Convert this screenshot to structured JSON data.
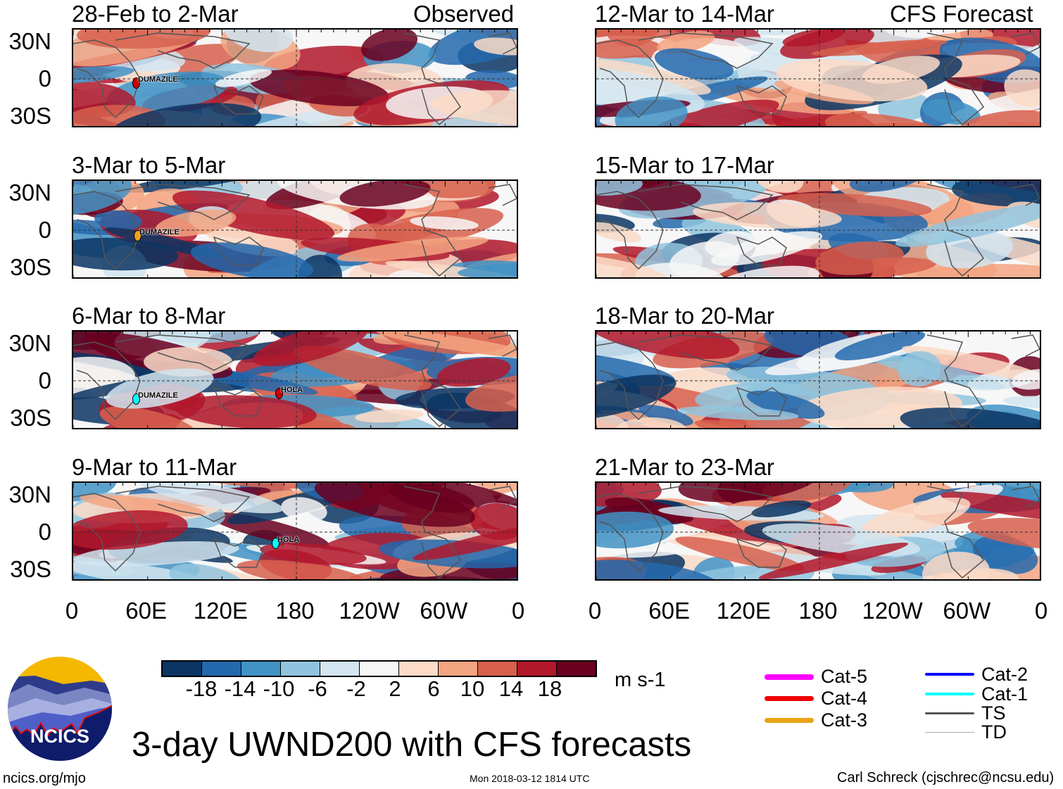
{
  "headers": {
    "observed": "Observed",
    "forecast": "CFS Forecast"
  },
  "panels": {
    "observed": [
      {
        "title": "28-Feb to 2-Mar",
        "storms": [
          "DUMAZILE"
        ]
      },
      {
        "title": "3-Mar to 5-Mar",
        "storms": [
          "DUMAZILE"
        ]
      },
      {
        "title": "6-Mar to 8-Mar",
        "storms": [
          "DUMAZILE",
          "HOLA"
        ]
      },
      {
        "title": "9-Mar to 11-Mar",
        "storms": [
          "HOLA"
        ]
      }
    ],
    "forecast": [
      {
        "title": "12-Mar to 14-Mar",
        "storms": []
      },
      {
        "title": "15-Mar to 17-Mar",
        "storms": []
      },
      {
        "title": "18-Mar to 20-Mar",
        "storms": []
      },
      {
        "title": "21-Mar to 23-Mar",
        "storms": []
      }
    ]
  },
  "lat_labels": [
    "30N",
    "0",
    "30S"
  ],
  "lon_labels": [
    "0",
    "60E",
    "120E",
    "180",
    "120W",
    "60W",
    "0"
  ],
  "colorbar": {
    "colors": [
      "#0b3563",
      "#2369ad",
      "#4293c5",
      "#90c4de",
      "#d2e5f0",
      "#f7f7f7",
      "#fcdbc7",
      "#f3a481",
      "#d7604d",
      "#b2182b",
      "#6a0020"
    ],
    "labels": [
      "-18",
      "-14",
      "-10",
      "-6",
      "-2",
      "2",
      "6",
      "10",
      "14",
      "18"
    ],
    "units": "m s-1"
  },
  "legend": [
    {
      "label": "Cat-5",
      "color": "#ff00ff"
    },
    {
      "label": "Cat-4",
      "color": "#ee0000"
    },
    {
      "label": "Cat-3",
      "color": "#e8a317"
    },
    {
      "label": "Cat-2",
      "color": "#0000ff"
    },
    {
      "label": "Cat-1",
      "color": "#00ffff"
    },
    {
      "label": "TS",
      "color": "#555555"
    },
    {
      "label": "TD",
      "color": "#aaaaaa"
    }
  ],
  "title": "3-day UWND200 with CFS forecasts",
  "logo_text": "NCICS",
  "footer": {
    "website": "ncics.org/mjo",
    "timestamp": "Mon 2018-03-12 1814 UTC",
    "credit": "Carl Schreck (cjschrec@ncsu.edu)"
  }
}
